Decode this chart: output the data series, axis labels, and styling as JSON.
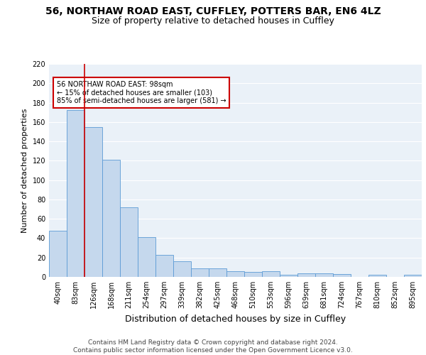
{
  "title1": "56, NORTHAW ROAD EAST, CUFFLEY, POTTERS BAR, EN6 4LZ",
  "title2": "Size of property relative to detached houses in Cuffley",
  "xlabel": "Distribution of detached houses by size in Cuffley",
  "ylabel": "Number of detached properties",
  "categories": [
    "40sqm",
    "83sqm",
    "126sqm",
    "168sqm",
    "211sqm",
    "254sqm",
    "297sqm",
    "339sqm",
    "382sqm",
    "425sqm",
    "468sqm",
    "510sqm",
    "553sqm",
    "596sqm",
    "639sqm",
    "681sqm",
    "724sqm",
    "767sqm",
    "810sqm",
    "852sqm",
    "895sqm"
  ],
  "bar_values": [
    48,
    172,
    155,
    121,
    72,
    41,
    23,
    16,
    9,
    9,
    6,
    5,
    6,
    2,
    4,
    4,
    3,
    0,
    2,
    0,
    2
  ],
  "bar_color": "#c5d8ed",
  "bar_edge_color": "#5b9bd5",
  "vline_x": 1.5,
  "vline_color": "#cc0000",
  "annotation_text": "56 NORTHAW ROAD EAST: 98sqm\n← 15% of detached houses are smaller (103)\n85% of semi-detached houses are larger (581) →",
  "annotation_box_color": "#ffffff",
  "annotation_box_edge": "#cc0000",
  "ylim": [
    0,
    220
  ],
  "yticks": [
    0,
    20,
    40,
    60,
    80,
    100,
    120,
    140,
    160,
    180,
    200,
    220
  ],
  "footer": "Contains HM Land Registry data © Crown copyright and database right 2024.\nContains public sector information licensed under the Open Government Licence v3.0.",
  "bg_color": "#eaf1f8",
  "grid_color": "#ffffff",
  "title_fontsize": 10,
  "subtitle_fontsize": 9,
  "axis_label_fontsize": 8,
  "tick_fontsize": 7,
  "footer_fontsize": 6.5
}
